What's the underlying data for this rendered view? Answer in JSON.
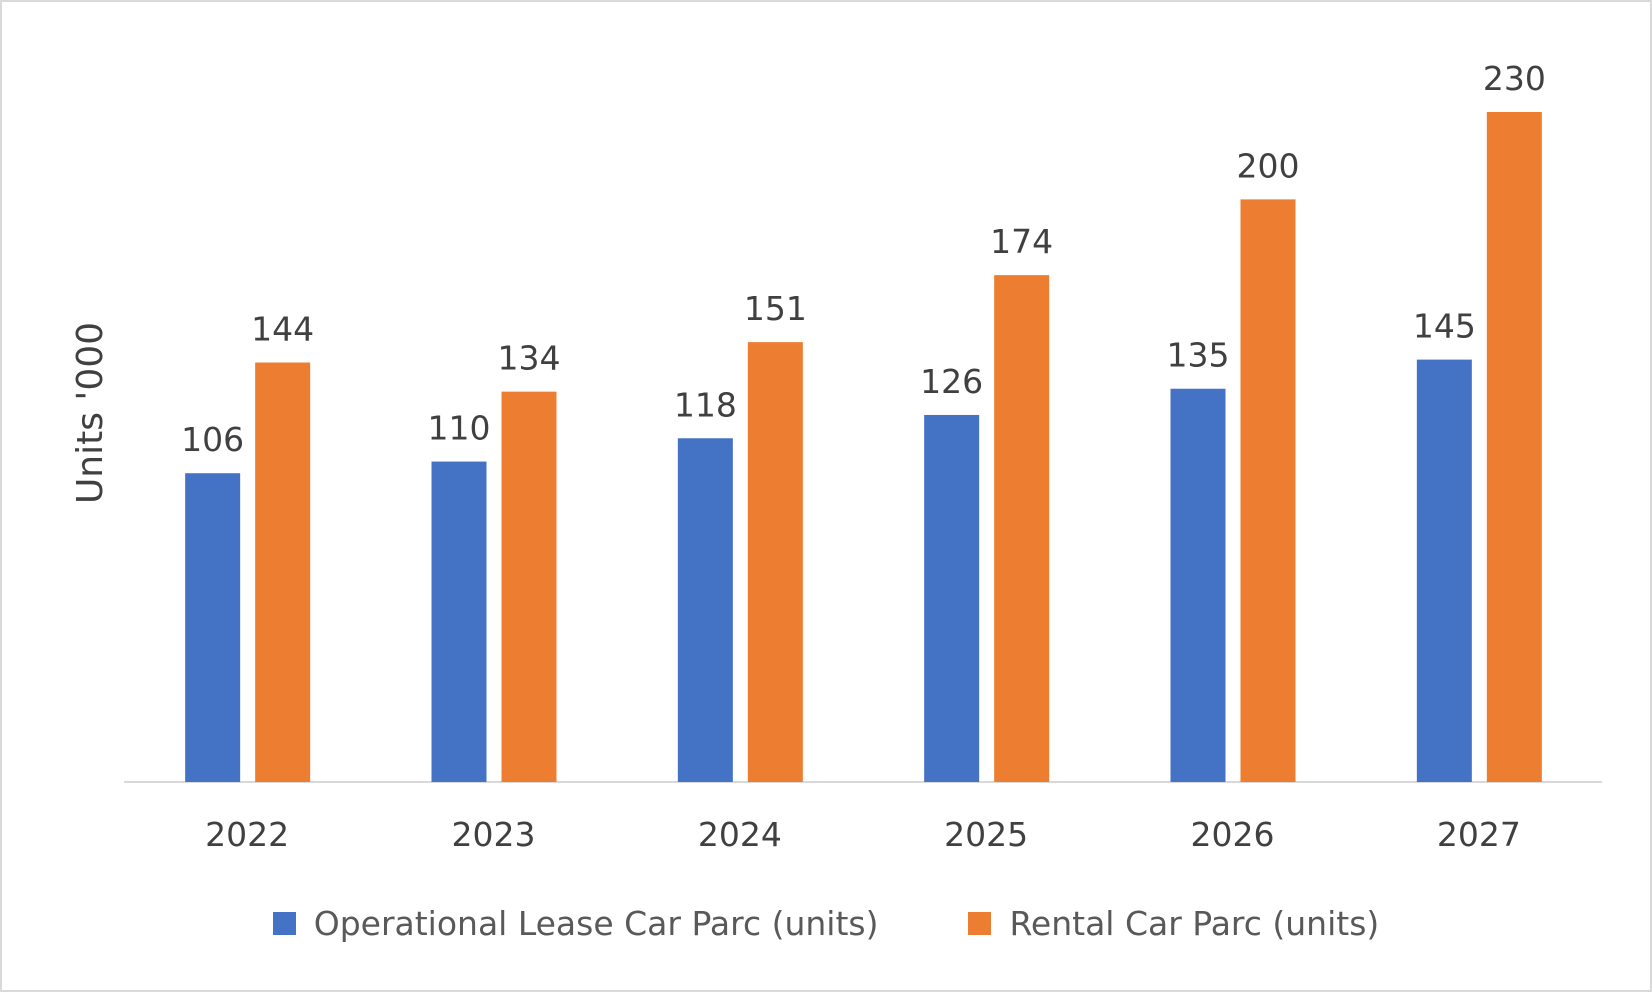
{
  "chart_data": {
    "type": "bar",
    "categories": [
      "2022",
      "2023",
      "2024",
      "2025",
      "2026",
      "2027"
    ],
    "series": [
      {
        "name": "Operational Lease Car Parc (units)",
        "values": [
          106,
          110,
          118,
          126,
          135,
          145
        ],
        "color": "#4472C4"
      },
      {
        "name": "Rental Car Parc (units)",
        "values": [
          144,
          134,
          151,
          174,
          200,
          230
        ],
        "color": "#ED7D31"
      }
    ],
    "title": "",
    "xlabel": "",
    "ylabel": "Units '000",
    "ylim": [
      0,
      230
    ],
    "grid": false,
    "data_labels": true,
    "legend": "bottom"
  }
}
